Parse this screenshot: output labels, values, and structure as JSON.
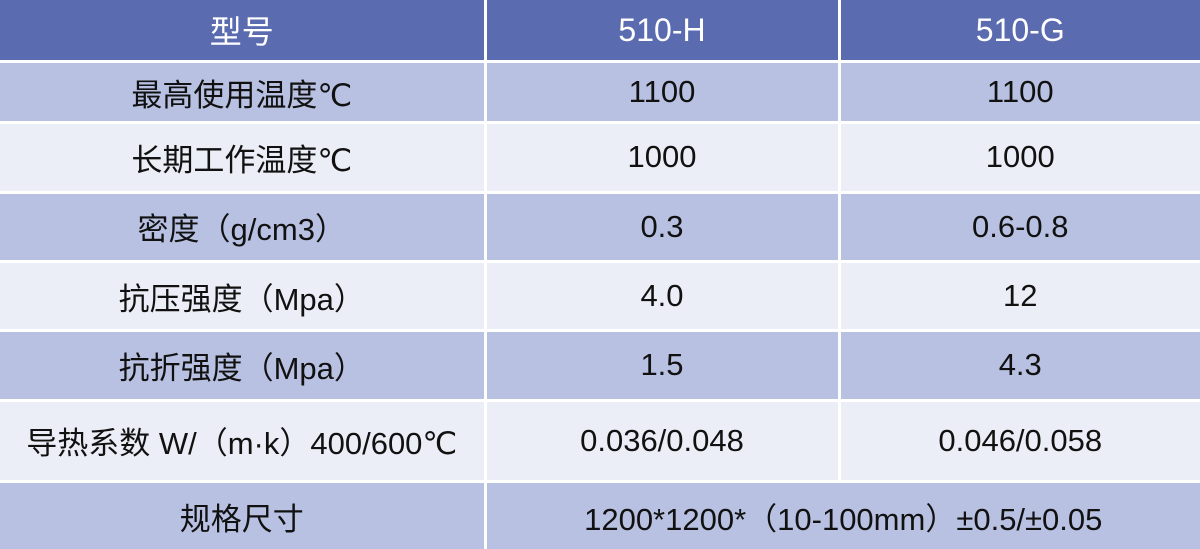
{
  "colors": {
    "header_bg": "#5b6bb0",
    "row_dark": "#b8c1e2",
    "row_light": "#eceef7"
  },
  "header": [
    "型号",
    "510-H",
    "510-G"
  ],
  "rows": [
    [
      "最高使用温度℃",
      "1100",
      "1100"
    ],
    [
      "长期工作温度℃",
      "1000",
      "1000"
    ],
    [
      "密度（g/cm3）",
      "0.3",
      "0.6-0.8"
    ],
    [
      "抗压强度（Mpa）",
      "4.0",
      "12"
    ],
    [
      "抗折强度（Mpa）",
      "1.5",
      "4.3"
    ],
    [
      "导热系数 W/（m·k）400/600℃",
      "0.036/0.048",
      "0.046/0.058"
    ]
  ],
  "size_row": {
    "label": "规格尺寸",
    "value": "1200*1200*（10-100mm）±0.5/±0.05"
  }
}
